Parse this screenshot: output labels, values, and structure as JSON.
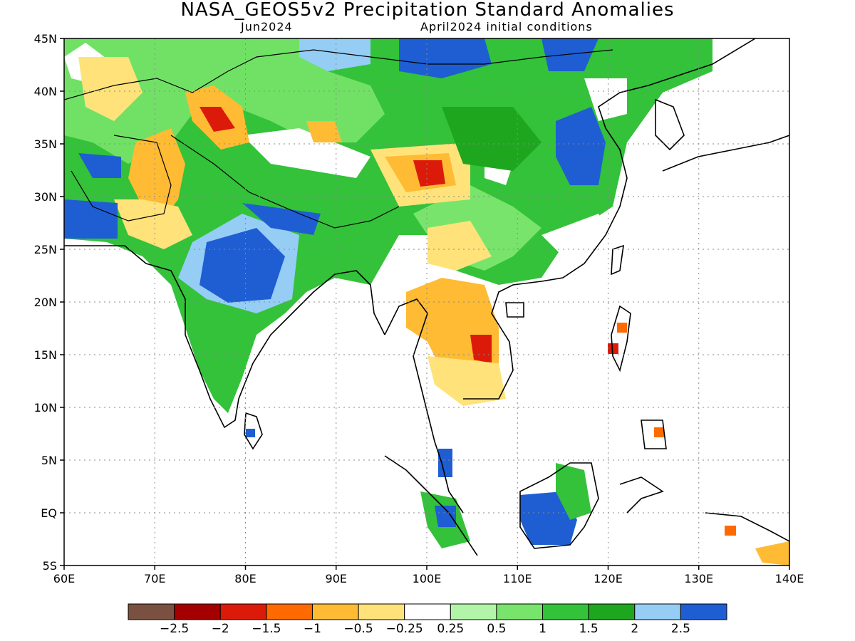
{
  "figure": {
    "title": "NASA_GEOS5v2 Precipitation Standard Anomalies",
    "month": "Jun2024",
    "init": "April2024 initial conditions"
  },
  "map": {
    "lon_range": [
      60,
      140
    ],
    "lat_range": [
      -5,
      45
    ],
    "lon_ticks": [
      "60E",
      "70E",
      "80E",
      "90E",
      "100E",
      "110E",
      "120E",
      "130E",
      "140E"
    ],
    "lat_ticks": [
      "45N",
      "40N",
      "35N",
      "30N",
      "25N",
      "20N",
      "15N",
      "10N",
      "5N",
      "EQ",
      "5S"
    ],
    "grid": "dotted"
  },
  "legend": {
    "colors": [
      "#7a5040",
      "#a50000",
      "#dc1a0a",
      "#ff6a00",
      "#ffbb33",
      "#ffe37a",
      "#ffffff",
      "#b3f5a8",
      "#78e46b",
      "#33c23a",
      "#1fa61f",
      "#96cdf5",
      "#1e5ed2"
    ],
    "labels": [
      "−2.5",
      "−2",
      "−1.5",
      "−1",
      "−0.5",
      "−0.25",
      "0.25",
      "0.5",
      "1",
      "1.5",
      "2",
      "2.5"
    ]
  },
  "anomaly_fields": [
    {
      "cls": "strong-wet",
      "lon": [
        62,
        65
      ],
      "lat": [
        26,
        30
      ],
      "color": "#1e5ed2"
    },
    {
      "cls": "strong-wet",
      "lon": [
        64,
        66
      ],
      "lat": [
        31,
        33
      ],
      "color": "#1e5ed2"
    },
    {
      "cls": "strong-wet",
      "lon": [
        78,
        82
      ],
      "lat": [
        20,
        25
      ],
      "color": "#1e5ed2"
    },
    {
      "cls": "strong-wet",
      "lon": [
        110,
        113
      ],
      "lat": [
        -2,
        1
      ],
      "color": "#1e5ed2"
    },
    {
      "cls": "strong-wet",
      "lon": [
        114,
        117
      ],
      "lat": [
        30,
        35
      ],
      "color": "#1e5ed2"
    },
    {
      "cls": "strong-wet",
      "lon": [
        98,
        104
      ],
      "lat": [
        42,
        45
      ],
      "color": "#1e5ed2"
    },
    {
      "cls": "strong-dry",
      "lon": [
        96,
        100
      ],
      "lat": [
        31,
        33
      ],
      "color": "#dc1a0a"
    },
    {
      "cls": "strong-dry",
      "lon": [
        76,
        78
      ],
      "lat": [
        36,
        38
      ],
      "color": "#dc1a0a"
    },
    {
      "cls": "strong-dry",
      "lon": [
        105,
        106
      ],
      "lat": [
        14,
        16
      ],
      "color": "#dc1a0a"
    },
    {
      "cls": "dry",
      "lon": [
        101,
        107
      ],
      "lat": [
        13,
        18
      ],
      "color": "#ffbb33"
    },
    {
      "cls": "dry",
      "lon": [
        68,
        73
      ],
      "lat": [
        30,
        35
      ],
      "color": "#ffbb33"
    },
    {
      "cls": "moderate-wet",
      "lon": [
        62,
        80
      ],
      "lat": [
        35,
        45
      ],
      "color": "#78e46b"
    },
    {
      "cls": "moderate-wet",
      "lon": [
        85,
        115
      ],
      "lat": [
        22,
        44
      ],
      "color": "#33c23a"
    },
    {
      "cls": "moderate-wet",
      "lon": [
        75,
        90
      ],
      "lat": [
        14,
        30
      ],
      "color": "#33c23a"
    }
  ]
}
